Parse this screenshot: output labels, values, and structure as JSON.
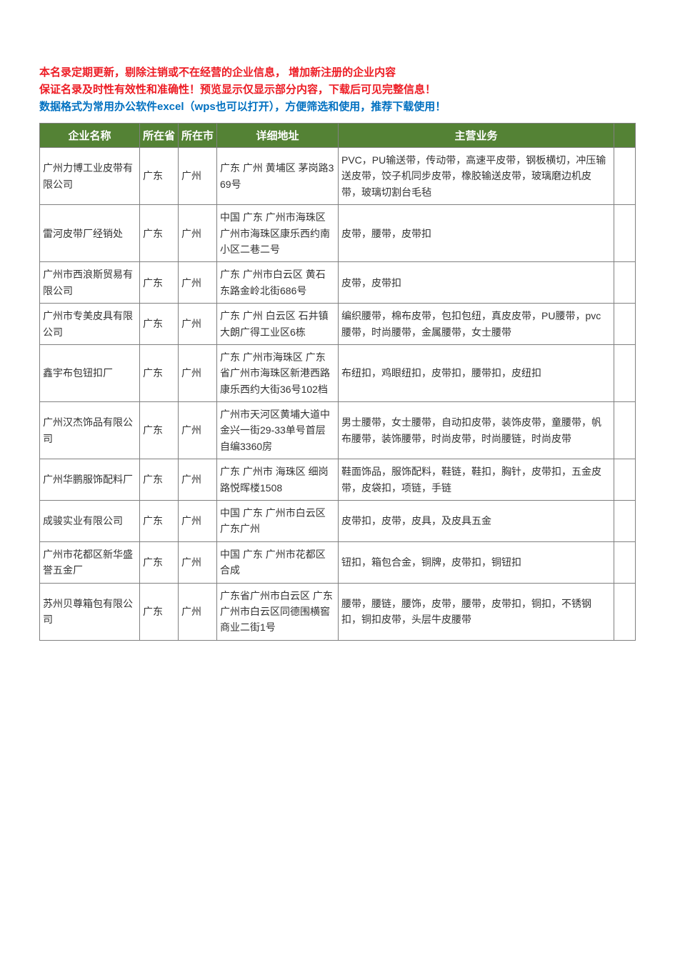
{
  "intro": {
    "line1": "本名录定期更新，剔除注销或不在经营的企业信息， 增加新注册的企业内容",
    "line2": "保证名录及时性有效性和准确性！预览显示仅显示部分内容，下载后可见完整信息！",
    "line3": "数据格式为常用办公软件excel（wps也可以打开），方便筛选和使用，推荐下载使用！"
  },
  "table": {
    "header_bg": "#548235",
    "header_fg": "#ffffff",
    "border_color": "#808080",
    "columns": [
      "企业名称",
      "所在省",
      "所在市",
      "详细地址",
      "主营业务"
    ],
    "rows": [
      {
        "name": "广州力博工业皮带有限公司",
        "prov": "广东",
        "city": "广州",
        "addr": "广东 广州 黄埔区 茅岗路369号",
        "biz": "PVC，PU输送带，传动带，高速平皮带，钢板横切，冲压输送皮带，饺子机同步皮带，橡胶输送皮带，玻璃磨边机皮带，玻璃切割台毛毡"
      },
      {
        "name": "雷河皮带厂经销处",
        "prov": "广东",
        "city": "广州",
        "addr": "中国 广东 广州市海珠区 广州市海珠区康乐西约南小区二巷二号",
        "biz": "皮带，腰带，皮带扣"
      },
      {
        "name": "广州市西浪斯贸易有限公司",
        "prov": "广东",
        "city": "广州",
        "addr": "广东 广州市白云区 黄石东路金岭北街686号",
        "biz": "皮带，皮带扣"
      },
      {
        "name": "广州市专美皮具有限公司",
        "prov": "广东",
        "city": "广州",
        "addr": "广东 广州 白云区 石井镇大朗广得工业区6栋",
        "biz": "编织腰带，棉布皮带，包扣包纽，真皮皮带，PU腰带，pvc腰带，时尚腰带，金属腰带，女士腰带"
      },
      {
        "name": "鑫宇布包钮扣厂",
        "prov": "广东",
        "city": "广州",
        "addr": "广东 广州市海珠区 广东省广州市海珠区新港西路康乐西约大街36号102档",
        "biz": "布纽扣，鸡眼纽扣，皮带扣，腰带扣，皮纽扣"
      },
      {
        "name": "广州汉杰饰品有限公司",
        "prov": "广东",
        "city": "广州",
        "addr": "广州市天河区黄埔大道中金兴一街29-33单号首层自编3360房",
        "biz": "男士腰带，女士腰带，自动扣皮带，装饰皮带，童腰带，帆布腰带，装饰腰带，时尚皮带，时尚腰链，时尚皮带"
      },
      {
        "name": "广州华鹏服饰配料厂",
        "prov": "广东",
        "city": "广州",
        "addr": "广东 广州市 海珠区 细岗路悦晖楼1508",
        "biz": "鞋面饰品，服饰配料，鞋链，鞋扣，胸针，皮带扣，五金皮带，皮袋扣，项链，手链"
      },
      {
        "name": "成骏实业有限公司",
        "prov": "广东",
        "city": "广州",
        "addr": "中国 广东 广州市白云区 广东广州",
        "biz": "皮带扣，皮带，皮具，及皮具五金"
      },
      {
        "name": "广州市花都区新华盛誉五金厂",
        "prov": "广东",
        "city": "广州",
        "addr": "中国 广东 广州市花都区 合成",
        "biz": "钮扣，箱包合金，铜牌，皮带扣，铜钮扣"
      },
      {
        "name": "苏州贝尊箱包有限公司",
        "prov": "广东",
        "city": "广州",
        "addr": "广东省广州市白云区 广东广州市白云区同德围横窖商业二街1号",
        "biz": "腰带，腰链，腰饰，皮带，腰带，皮带扣，铜扣，不锈钢扣，铜扣皮带，头层牛皮腰带"
      }
    ]
  }
}
